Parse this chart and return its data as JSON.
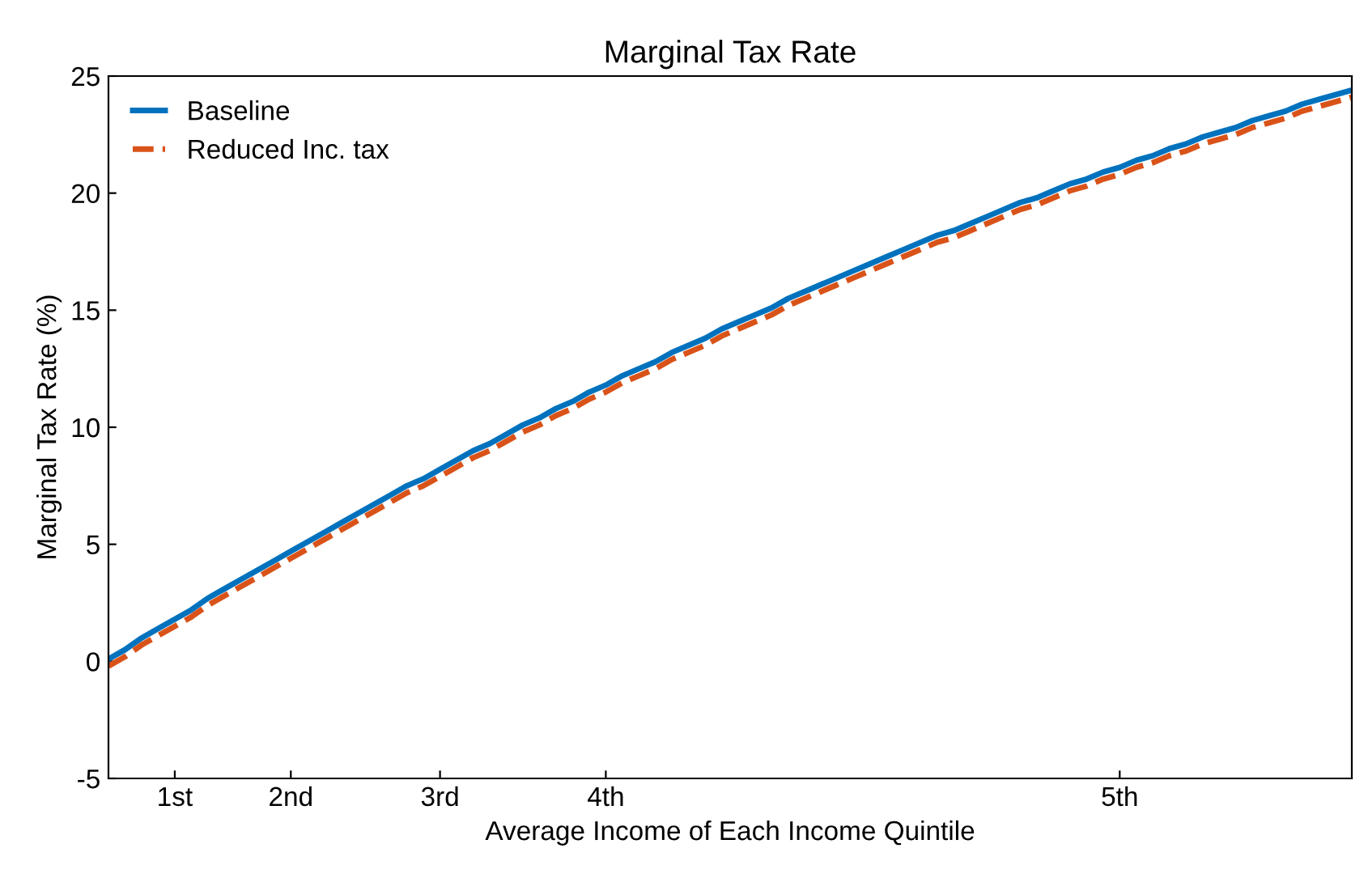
{
  "chart_data": {
    "type": "line",
    "title": "Marginal Tax Rate",
    "xlabel": "Average Income of Each Income Quintile",
    "ylabel": "Marginal Tax Rate (%)",
    "categories": [
      null,
      null,
      null,
      null,
      "1st",
      null,
      null,
      null,
      null,
      null,
      null,
      "2nd",
      null,
      null,
      null,
      null,
      null,
      null,
      null,
      null,
      "3rd",
      null,
      null,
      null,
      null,
      null,
      null,
      null,
      null,
      null,
      "4th",
      null,
      null,
      null,
      null,
      null,
      null,
      null,
      null,
      null,
      null,
      null,
      null,
      null,
      null,
      null,
      null,
      null,
      null,
      null,
      null,
      null,
      null,
      null,
      null,
      null,
      null,
      null,
      null,
      null,
      null,
      "5th",
      null,
      null,
      null,
      null,
      null,
      null,
      null,
      null,
      null,
      null,
      null,
      null,
      null,
      null
    ],
    "ylim": [
      -5,
      25
    ],
    "yticks": [
      -5,
      0,
      5,
      10,
      15,
      20,
      25
    ],
    "grid": false,
    "legend": "top left",
    "series": [
      {
        "name": "Baseline",
        "color": "#0072bd",
        "line_style": "solid",
        "values": [
          0.1,
          0.5,
          1.0,
          1.4,
          1.8,
          2.2,
          2.7,
          3.1,
          3.5,
          3.9,
          4.3,
          4.7,
          5.1,
          5.5,
          5.9,
          6.3,
          6.7,
          7.1,
          7.5,
          7.8,
          8.2,
          8.6,
          9.0,
          9.3,
          9.7,
          10.1,
          10.4,
          10.8,
          11.1,
          11.5,
          11.8,
          12.2,
          12.5,
          12.8,
          13.2,
          13.5,
          13.8,
          14.2,
          14.5,
          14.8,
          15.1,
          15.5,
          15.8,
          16.1,
          16.4,
          16.7,
          17.0,
          17.3,
          17.6,
          17.9,
          18.2,
          18.4,
          18.7,
          19.0,
          19.3,
          19.6,
          19.8,
          20.1,
          20.4,
          20.6,
          20.9,
          21.1,
          21.4,
          21.6,
          21.9,
          22.1,
          22.4,
          22.6,
          22.8,
          23.1,
          23.3,
          23.5,
          23.8,
          24.0,
          24.2,
          24.4
        ]
      },
      {
        "name": "Reduced Inc. tax",
        "color": "#d95319",
        "line_style": "dashed",
        "values": [
          -0.2,
          0.2,
          0.7,
          1.1,
          1.5,
          1.9,
          2.4,
          2.8,
          3.2,
          3.6,
          4.0,
          4.4,
          4.8,
          5.2,
          5.6,
          6.0,
          6.4,
          6.8,
          7.2,
          7.5,
          7.9,
          8.3,
          8.7,
          9.0,
          9.4,
          9.8,
          10.1,
          10.5,
          10.8,
          11.2,
          11.5,
          11.9,
          12.2,
          12.5,
          12.9,
          13.2,
          13.5,
          13.9,
          14.2,
          14.5,
          14.8,
          15.2,
          15.5,
          15.8,
          16.1,
          16.4,
          16.7,
          17.0,
          17.3,
          17.6,
          17.9,
          18.1,
          18.4,
          18.7,
          19.0,
          19.3,
          19.5,
          19.8,
          20.1,
          20.3,
          20.6,
          20.8,
          21.1,
          21.3,
          21.6,
          21.8,
          22.1,
          22.3,
          22.5,
          22.8,
          23.0,
          23.2,
          23.5,
          23.7,
          23.9,
          24.1
        ]
      }
    ]
  }
}
